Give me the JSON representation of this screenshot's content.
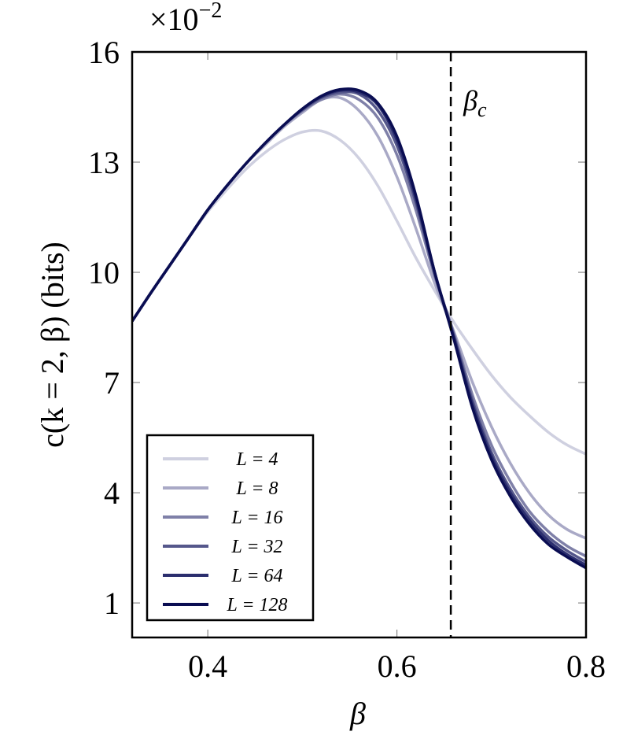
{
  "chart_data": {
    "type": "line",
    "y_label": "c(k = 2, β) (bits)",
    "x_label": "β",
    "y_multiplier": "×10",
    "y_multiplier_exponent": "−2",
    "xlim": [
      0.32,
      0.8
    ],
    "ylim": [
      0.06,
      16
    ],
    "xticks": [
      0.4,
      0.6,
      0.8
    ],
    "yticks": [
      1,
      4,
      7,
      10,
      13,
      16
    ],
    "grid": false,
    "legend": "lower left",
    "vline": {
      "x": 0.657,
      "label": "β",
      "label_subscript": "c"
    },
    "x": [
      0.32,
      0.34,
      0.36,
      0.38,
      0.4,
      0.42,
      0.44,
      0.46,
      0.48,
      0.5,
      0.52,
      0.54,
      0.56,
      0.58,
      0.6,
      0.62,
      0.64,
      0.66,
      0.68,
      0.7,
      0.72,
      0.74,
      0.76,
      0.78,
      0.8
    ],
    "series": [
      {
        "name": "L = 4",
        "color": "#cfd0e0",
        "values": [
          8.67,
          9.45,
          10.2,
          10.95,
          11.65,
          12.25,
          12.8,
          13.25,
          13.6,
          13.82,
          13.85,
          13.6,
          13.1,
          12.35,
          11.4,
          10.4,
          9.5,
          8.65,
          7.9,
          7.2,
          6.6,
          6.1,
          5.65,
          5.3,
          5.05
        ]
      },
      {
        "name": "L = 8",
        "color": "#a9a9c6",
        "values": [
          8.67,
          9.45,
          10.2,
          10.95,
          11.7,
          12.35,
          12.95,
          13.45,
          13.95,
          14.35,
          14.7,
          14.75,
          14.4,
          13.7,
          12.6,
          11.2,
          9.7,
          8.4,
          7.0,
          5.8,
          4.8,
          4.0,
          3.4,
          3.0,
          2.76
        ]
      },
      {
        "name": "L = 16",
        "color": "#7f80a8",
        "values": [
          8.67,
          9.45,
          10.2,
          10.95,
          11.7,
          12.35,
          12.95,
          13.5,
          14.0,
          14.4,
          14.7,
          14.85,
          14.7,
          14.2,
          13.2,
          11.7,
          9.9,
          8.35,
          6.65,
          5.3,
          4.3,
          3.5,
          2.95,
          2.55,
          2.27
        ]
      },
      {
        "name": "L = 32",
        "color": "#55578b",
        "values": [
          8.67,
          9.45,
          10.2,
          10.95,
          11.7,
          12.35,
          12.95,
          13.5,
          14.0,
          14.42,
          14.75,
          14.9,
          14.85,
          14.4,
          13.45,
          11.9,
          9.95,
          8.3,
          6.5,
          5.1,
          4.1,
          3.35,
          2.8,
          2.42,
          2.12
        ]
      },
      {
        "name": "L = 64",
        "color": "#2b2e6e",
        "values": [
          8.67,
          9.45,
          10.2,
          10.95,
          11.7,
          12.35,
          12.95,
          13.5,
          14.0,
          14.45,
          14.78,
          14.95,
          14.9,
          14.55,
          13.6,
          12.0,
          10.0,
          8.25,
          6.4,
          5.0,
          4.0,
          3.25,
          2.7,
          2.32,
          2.03
        ]
      },
      {
        "name": "L = 128",
        "color": "#0a0d52",
        "values": [
          8.67,
          9.45,
          10.2,
          10.95,
          11.7,
          12.35,
          12.95,
          13.5,
          14.0,
          14.45,
          14.8,
          14.98,
          14.95,
          14.6,
          13.7,
          12.1,
          10.0,
          8.2,
          6.3,
          4.9,
          3.9,
          3.15,
          2.6,
          2.25,
          1.95
        ]
      }
    ]
  }
}
